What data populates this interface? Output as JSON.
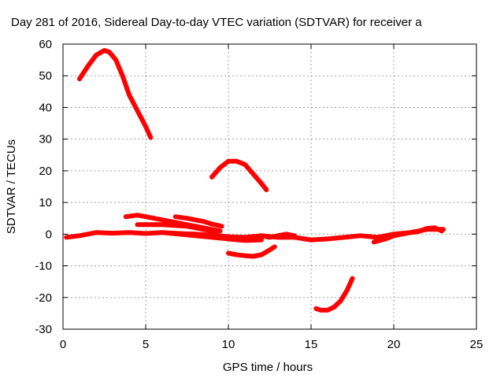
{
  "chart_data": {
    "type": "line",
    "title": "Day 281 of 2016, Sidereal Day-to-day VTEC variation (SDTVAR) for receiver a",
    "xlabel": "GPS time / hours",
    "ylabel": "SDTVAR / TECUs",
    "xlim": [
      0,
      25
    ],
    "ylim": [
      -30,
      60
    ],
    "xticks": [
      0,
      5,
      10,
      15,
      20,
      25
    ],
    "yticks": [
      -30,
      -20,
      -10,
      0,
      10,
      20,
      30,
      40,
      50,
      60
    ],
    "grid": true,
    "legend": "none",
    "series_color": "#ff0000",
    "series": [
      {
        "x": [
          1.0,
          1.5,
          2.0,
          2.5,
          2.8,
          3.2,
          3.6,
          4.0,
          4.5,
          5.0,
          5.3
        ],
        "y": [
          49,
          53,
          56.5,
          58,
          57.5,
          55,
          50,
          44,
          39,
          34,
          30.5
        ]
      },
      {
        "x": [
          9.0,
          9.5,
          10.0,
          10.5,
          11.0,
          11.5,
          12.0,
          12.3
        ],
        "y": [
          18,
          21,
          23,
          23,
          22,
          19,
          16,
          14
        ]
      },
      {
        "x": [
          15.3,
          15.6,
          16.0,
          16.4,
          16.8,
          17.2,
          17.5
        ],
        "y": [
          -23.5,
          -24,
          -24,
          -23,
          -21,
          -17.5,
          -14
        ]
      },
      {
        "x": [
          3.8,
          4.5,
          5.0,
          5.5,
          6.5,
          7.5,
          8.5,
          9.5
        ],
        "y": [
          5.5,
          6,
          5.5,
          5,
          4,
          3,
          2,
          1
        ]
      },
      {
        "x": [
          6.8,
          7.5,
          8.0,
          8.5,
          9.0,
          9.6
        ],
        "y": [
          5.5,
          5,
          4.5,
          4,
          3.2,
          2.5
        ]
      },
      {
        "x": [
          10.0,
          10.5,
          11.0,
          11.5,
          12.0,
          12.5,
          12.8
        ],
        "y": [
          -6,
          -6.5,
          -6.8,
          -7,
          -6.5,
          -5,
          -4
        ]
      },
      {
        "x": [
          0.2,
          1.0,
          2.0,
          3.0,
          4.0,
          5.0,
          6.0,
          7.0,
          8.0,
          9.0,
          10.0,
          11.0,
          12.0,
          13.0,
          14.0,
          15.0,
          16.0,
          17.0,
          18.0,
          19.0,
          20.0,
          21.0,
          22.0,
          23.0
        ],
        "y": [
          -1,
          -0.5,
          0.5,
          0.3,
          0.5,
          0.2,
          0.5,
          0.2,
          0,
          -0.3,
          -0.8,
          -1,
          -0.5,
          -1,
          -1,
          -1.8,
          -1.5,
          -1,
          -0.5,
          -1,
          0,
          0.5,
          1.5,
          1.5
        ]
      },
      {
        "x": [
          12.0,
          12.5,
          13.0,
          13.5,
          14.0
        ],
        "y": [
          -0.5,
          -1,
          -0.5,
          0,
          -0.5
        ]
      },
      {
        "x": [
          18.8,
          19.5,
          20.0,
          20.5,
          21.0,
          21.5,
          22.0,
          22.5,
          22.9
        ],
        "y": [
          -2.5,
          -1.5,
          -0.5,
          0,
          0.5,
          0.8,
          1.8,
          2,
          1
        ]
      },
      {
        "x": [
          4.5,
          6.0,
          7.5,
          8.5,
          9.3
        ],
        "y": [
          3,
          3,
          2.5,
          1.5,
          0.8
        ]
      },
      {
        "x": [
          6.0,
          8.0,
          10.0,
          11.0,
          12.0
        ],
        "y": [
          0.5,
          -0.5,
          -1.5,
          -2,
          -1.8
        ]
      }
    ]
  }
}
